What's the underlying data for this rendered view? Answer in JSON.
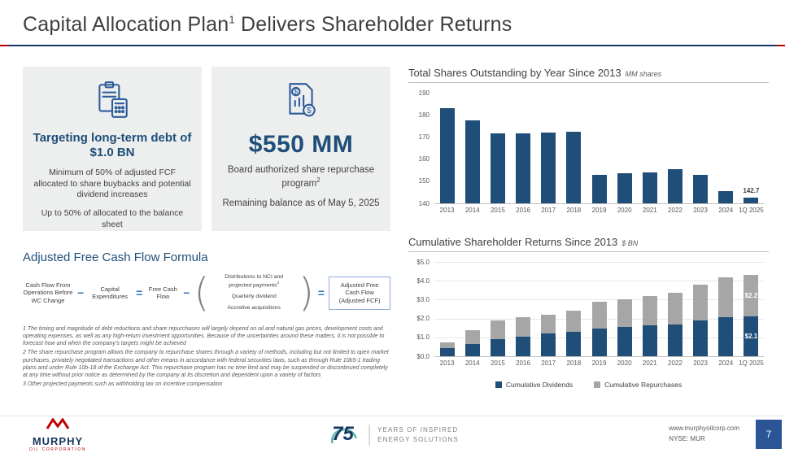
{
  "header": {
    "title_main": "Capital Allocation Plan",
    "title_sup": "1",
    "title_rest": " Delivers Shareholder Returns"
  },
  "left": {
    "box1": {
      "heading": "Targeting long-term debt of $1.0 BN",
      "body1": "Minimum of 50% of adjusted FCF allocated to share buybacks and potential dividend increases",
      "body2": "Up to 50% of allocated to the balance sheet"
    },
    "box2": {
      "amount": "$550 MM",
      "body1": "Board authorized share repurchase program",
      "body1_sup": "2",
      "body2": "Remaining balance as of May 5, 2025"
    },
    "formula": {
      "heading": "Adjusted Free Cash Flow Formula",
      "item1": "Cash Flow From Operations Before WC Change",
      "minus1": "−",
      "item2": "Capital Expenditures",
      "equals1": "=",
      "item3": "Free Cash Flow",
      "minus2": "−",
      "paren_open": "(",
      "paren_item1": "Distributions to NCI and projected payments",
      "paren_item1_sup": "3",
      "paren_item2": "Quarterly dividend",
      "paren_item3": "Accretive acquisitions",
      "paren_close": ")",
      "equals2": "=",
      "result": "Adjusted Free Cash Flow (Adjusted FCF)"
    },
    "footnotes": [
      "1 The timing and magnitude of debt reductions and share repurchases will largely depend on oil and natural gas prices, development costs and operating expenses, as well as any high-return investment opportunities. Because of the uncertainties around these matters, it is not possible to forecast how and when the company's targets might be achieved",
      "2 The share repurchase program allows the company to repurchase shares through a variety of methods, including but not limited to open market purchases, privately negotiated transactions and other means in accordance with federal securities laws, such as through Rule 10b5-1 trading plans and under Rule 10b-18 of the Exchange Act. This repurchase program has no time limit and may be suspended or discontinued completely at any time without prior notice as determined by the company at its discretion and dependent upon a variety of factors",
      "3 Other projected payments such as withholding tax on incentive compensation"
    ]
  },
  "chart_data": [
    {
      "dom_id": "shares-chart",
      "type": "bar",
      "title": "Total Shares Outstanding by Year Since 2013",
      "unit_label": "MM shares",
      "categories": [
        "2013",
        "2014",
        "2015",
        "2016",
        "2017",
        "2018",
        "2019",
        "2020",
        "2021",
        "2022",
        "2023",
        "2024",
        "1Q 2025"
      ],
      "values": [
        183,
        177.5,
        171.5,
        171.5,
        172,
        172.5,
        153,
        153.5,
        154,
        155.5,
        153,
        145.5,
        142.7
      ],
      "ylim": [
        140,
        190
      ],
      "yticks": [
        {
          "v": 140,
          "label": "140"
        },
        {
          "v": 150,
          "label": "150"
        },
        {
          "v": 160,
          "label": "160"
        },
        {
          "v": 170,
          "label": "170"
        },
        {
          "v": 180,
          "label": "180"
        },
        {
          "v": 190,
          "label": "190"
        }
      ],
      "grid": false,
      "bar_color": "#1f4e79",
      "annotations": [
        {
          "text": "142.7",
          "index": 12,
          "v": 142.7,
          "placement": "above",
          "color": "#3f3f3f"
        }
      ]
    },
    {
      "dom_id": "returns-chart",
      "type": "stacked-bar",
      "title": "Cumulative Shareholder Returns Since 2013",
      "unit_label": "$ BN",
      "categories": [
        "2013",
        "2014",
        "2015",
        "2016",
        "2017",
        "2018",
        "2019",
        "2020",
        "2021",
        "2022",
        "2023",
        "2024",
        "1Q 2025"
      ],
      "series": [
        {
          "name": "Cumulative Dividends",
          "color": "#1f4e79",
          "values": [
            0.45,
            0.65,
            0.9,
            1.05,
            1.2,
            1.3,
            1.45,
            1.55,
            1.65,
            1.7,
            1.9,
            2.05,
            2.1
          ]
        },
        {
          "name": "Cumulative Repurchases",
          "color": "#a6a6a6",
          "values": [
            0.3,
            0.75,
            1.0,
            1.0,
            1.0,
            1.1,
            1.45,
            1.45,
            1.55,
            1.65,
            1.9,
            2.15,
            2.2
          ]
        }
      ],
      "ylim": [
        0,
        5
      ],
      "yticks": [
        {
          "v": 0,
          "label": "$0.0"
        },
        {
          "v": 1,
          "label": "$1.0"
        },
        {
          "v": 2,
          "label": "$2.0"
        },
        {
          "v": 3,
          "label": "$3.0"
        },
        {
          "v": 4,
          "label": "$4.0"
        },
        {
          "v": 5,
          "label": "$5.0"
        }
      ],
      "grid": true,
      "legend_position": "bottom",
      "annotations": [
        {
          "text": "$2.1",
          "index": 12,
          "v": 1.05,
          "placement": "inside",
          "color": "#ffffff"
        },
        {
          "text": "$2.2",
          "index": 12,
          "v": 3.2,
          "placement": "inside",
          "color": "#ffffff"
        }
      ]
    }
  ],
  "footer": {
    "logo": {
      "name": "MURPHY",
      "sub": "OIL CORPORATION"
    },
    "anniversary": {
      "number": "75",
      "line1": "YEARS OF INSPIRED",
      "line2": "ENERGY SOLUTIONS"
    },
    "website": "www.murphyoilcorp.com",
    "ticker": "NYSE: MUR",
    "page_number": "7"
  },
  "colors": {
    "navy": "#1f4e79",
    "gray_bar": "#a6a6a6",
    "accent_blue": "#2e75b6",
    "red": "#c00000"
  }
}
